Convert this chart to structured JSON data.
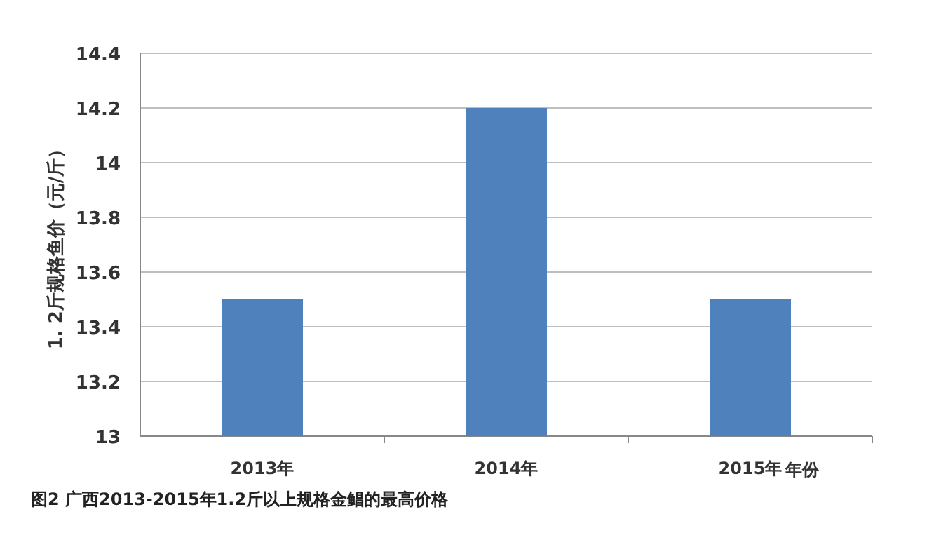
{
  "chart_data": {
    "type": "bar",
    "ylabel": "1. 2斤规格鱼价（元/斤）",
    "xlabel": "年份",
    "categories": [
      "2013年",
      "2014年",
      "2015年"
    ],
    "values": [
      13.5,
      14.2,
      13.5
    ],
    "color": "#4f81bd",
    "ylim": [
      13,
      14.4
    ],
    "yticks": [
      13,
      13.2,
      13.4,
      13.6,
      13.8,
      14,
      14.2,
      14.4
    ],
    "grid": "y",
    "annotations": [
      "图2 广西2013-2015年1.2斤以上规格金鲳的最高价格"
    ]
  }
}
